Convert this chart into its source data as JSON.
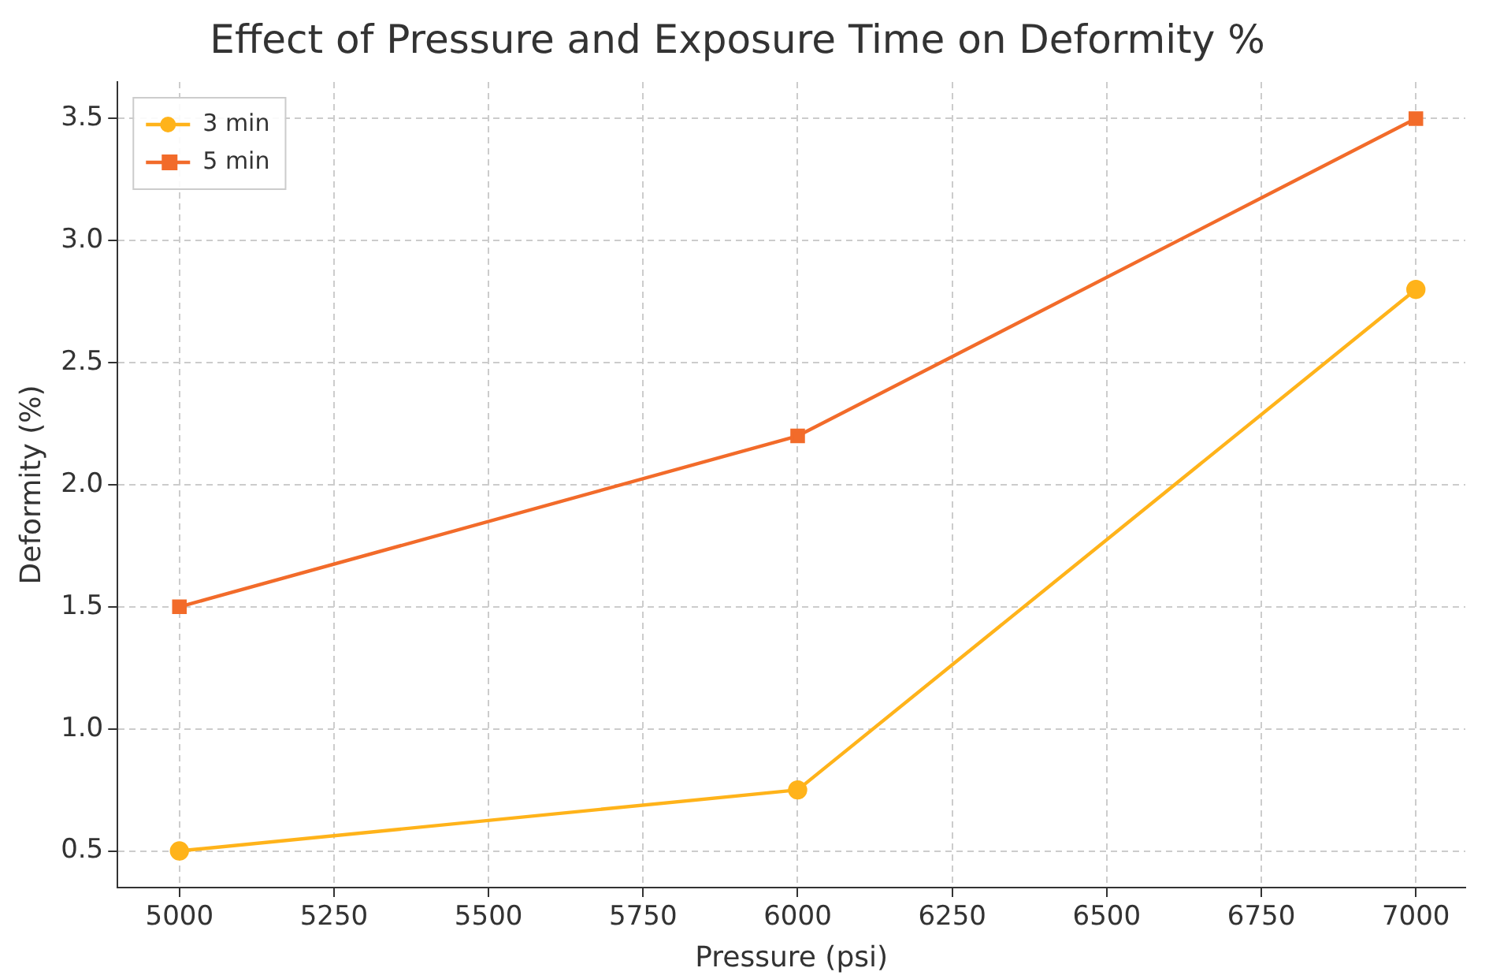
{
  "chart_data": {
    "type": "line",
    "title": "Effect of Pressure and Exposure Time on Deformity %",
    "xlabel": "Pressure (psi)",
    "ylabel": "Deformity (%)",
    "x": [
      5000,
      6000,
      7000
    ],
    "series": [
      {
        "name": "3 min",
        "color": "#ffb31a",
        "marker": "circle",
        "values": [
          0.5,
          0.75,
          2.8
        ]
      },
      {
        "name": "5 min",
        "color": "#f26b2a",
        "marker": "square",
        "values": [
          1.5,
          2.2,
          3.5
        ]
      }
    ],
    "xlim": [
      4900,
      7080
    ],
    "xticks": [
      5000,
      5250,
      5500,
      5750,
      6000,
      6250,
      6500,
      6750,
      7000
    ],
    "ylim": [
      0.35,
      3.65
    ],
    "yticks": [
      0.5,
      {
        "value": 1,
        "label": "1.0"
      },
      1.5,
      {
        "value": 2,
        "label": "2.0"
      },
      2.5,
      {
        "value": 3,
        "label": "3.0"
      },
      3.5
    ],
    "grid": true,
    "legend": "top left",
    "line_style": "solid"
  }
}
